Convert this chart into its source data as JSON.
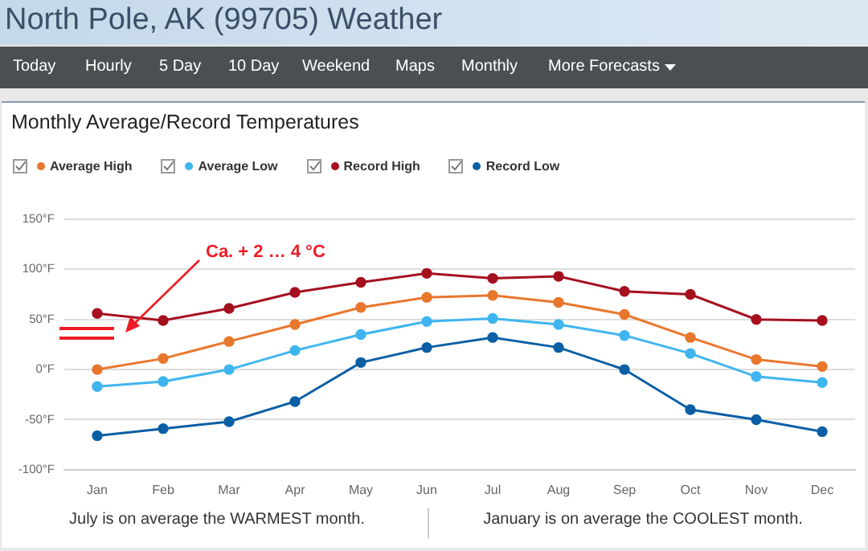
{
  "chart_data": {
    "type": "line",
    "title": "Monthly Average/Record Temperatures",
    "categories": [
      "Jan",
      "Feb",
      "Mar",
      "Apr",
      "May",
      "Jun",
      "Jul",
      "Aug",
      "Sep",
      "Oct",
      "Nov",
      "Dec"
    ],
    "series": [
      {
        "name": "Average High",
        "color": "#e8772e",
        "values": [
          0,
          11,
          28,
          45,
          62,
          72,
          74,
          67,
          55,
          32,
          10,
          3
        ]
      },
      {
        "name": "Average Low",
        "color": "#3fb5ef",
        "values": [
          -17,
          -12,
          0,
          19,
          35,
          48,
          51,
          45,
          34,
          16,
          -7,
          -13
        ]
      },
      {
        "name": "Record High",
        "color": "#a5101f",
        "values": [
          56,
          49,
          61,
          77,
          87,
          96,
          91,
          93,
          78,
          75,
          50,
          49
        ]
      },
      {
        "name": "Record Low",
        "color": "#0b5fa5",
        "values": [
          -66,
          -59,
          -52,
          -32,
          7,
          22,
          32,
          22,
          0,
          -40,
          -50,
          -62
        ]
      }
    ],
    "ylim": [
      -100,
      150
    ],
    "yticks": [
      {
        "value": -100,
        "label": "-100°F"
      },
      {
        "value": -50,
        "label": "-50°F"
      },
      {
        "value": 0,
        "label": "0°F"
      },
      {
        "value": 50,
        "label": "50°F"
      },
      {
        "value": 100,
        "label": "100°F"
      },
      {
        "value": 150,
        "label": "150°F"
      }
    ],
    "grid": "y",
    "legend": "top left",
    "marker": "circle",
    "line_style": "solid",
    "annotations": [
      "North Pole, AK (99705) Weather",
      "Today",
      "Hourly",
      "5 Day",
      "10 Day",
      "Weekend",
      "Maps",
      "Monthly",
      "More Forecasts",
      "Ca. + 2 … 4 °C",
      "July is on average the WARMEST month.",
      "January is on average the COOLEST month."
    ]
  }
}
